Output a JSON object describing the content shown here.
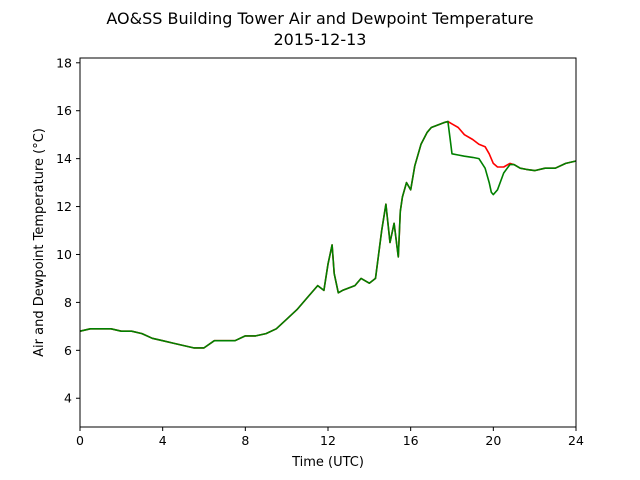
{
  "chart_data": {
    "type": "line",
    "title": "AO&SS Building Tower Air and Dewpoint Temperature",
    "subtitle": "2015-12-13",
    "xlabel": "Time (UTC)",
    "ylabel": "Air and Dewpoint Temperature (°C)",
    "xlim": [
      0,
      24
    ],
    "ylim": [
      2.8,
      18.2
    ],
    "xticks": [
      0,
      4,
      8,
      12,
      16,
      20,
      24
    ],
    "yticks": [
      4,
      6,
      8,
      10,
      12,
      14,
      16,
      18
    ],
    "grid": false,
    "legend": "none",
    "series": [
      {
        "color": "#ff0000",
        "x": [
          0,
          0.5,
          1,
          1.5,
          2,
          2.5,
          3,
          3.5,
          4,
          4.5,
          5,
          5.5,
          6,
          6.5,
          7,
          7.5,
          8,
          8.5,
          9,
          9.5,
          10,
          10.5,
          11,
          11.5,
          11.8,
          12,
          12.2,
          12.3,
          12.5,
          12.7,
          13,
          13.3,
          13.6,
          14,
          14.3,
          14.6,
          14.8,
          15,
          15.2,
          15.4,
          15.5,
          15.6,
          15.8,
          16,
          16.2,
          16.5,
          16.8,
          17,
          17.3,
          17.6,
          17.8,
          18,
          18.3,
          18.6,
          19,
          19.3,
          19.6,
          19.8,
          20,
          20.2,
          20.5,
          20.8,
          21,
          21.3,
          21.6,
          22,
          22.5,
          23,
          23.5,
          24
        ],
        "y": [
          6.8,
          6.9,
          6.9,
          6.9,
          6.8,
          6.8,
          6.7,
          6.5,
          6.4,
          6.3,
          6.2,
          6.1,
          6.1,
          6.4,
          6.4,
          6.4,
          6.6,
          6.6,
          6.7,
          6.9,
          7.3,
          7.7,
          8.2,
          8.7,
          8.5,
          9.6,
          10.4,
          9.2,
          8.4,
          8.5,
          8.6,
          8.7,
          9.0,
          8.8,
          9.0,
          11.0,
          12.1,
          10.5,
          11.3,
          9.9,
          11.8,
          12.4,
          13.0,
          12.7,
          13.7,
          14.6,
          15.1,
          15.3,
          15.4,
          15.5,
          15.55,
          15.45,
          15.3,
          15.0,
          14.8,
          14.6,
          14.5,
          14.2,
          13.8,
          13.65,
          13.65,
          13.8,
          13.75,
          13.6,
          13.55,
          13.5,
          13.6,
          13.6,
          13.8,
          13.9
        ]
      },
      {
        "color": "#008000",
        "x": [
          0,
          0.5,
          1,
          1.5,
          2,
          2.5,
          3,
          3.5,
          4,
          4.5,
          5,
          5.5,
          6,
          6.5,
          7,
          7.5,
          8,
          8.5,
          9,
          9.5,
          10,
          10.5,
          11,
          11.5,
          11.8,
          12,
          12.2,
          12.3,
          12.5,
          12.7,
          13,
          13.3,
          13.6,
          14,
          14.3,
          14.6,
          14.8,
          15,
          15.2,
          15.4,
          15.5,
          15.6,
          15.8,
          16,
          16.2,
          16.5,
          16.8,
          17,
          17.3,
          17.6,
          17.8,
          17.9,
          18,
          18.3,
          18.6,
          19,
          19.3,
          19.6,
          19.8,
          19.9,
          20,
          20.2,
          20.5,
          20.8,
          21,
          21.3,
          21.6,
          22,
          22.5,
          23,
          23.5,
          24
        ],
        "y": [
          6.8,
          6.9,
          6.9,
          6.9,
          6.8,
          6.8,
          6.7,
          6.5,
          6.4,
          6.3,
          6.2,
          6.1,
          6.1,
          6.4,
          6.4,
          6.4,
          6.6,
          6.6,
          6.7,
          6.9,
          7.3,
          7.7,
          8.2,
          8.7,
          8.5,
          9.6,
          10.4,
          9.2,
          8.4,
          8.5,
          8.6,
          8.7,
          9.0,
          8.8,
          9.0,
          11.0,
          12.1,
          10.5,
          11.3,
          9.9,
          11.8,
          12.4,
          13.0,
          12.7,
          13.7,
          14.6,
          15.1,
          15.3,
          15.4,
          15.5,
          15.55,
          14.9,
          14.2,
          14.15,
          14.1,
          14.05,
          14.0,
          13.6,
          13.0,
          12.6,
          12.5,
          12.7,
          13.4,
          13.75,
          13.75,
          13.6,
          13.55,
          13.5,
          13.6,
          13.6,
          13.8,
          13.9
        ]
      }
    ]
  }
}
